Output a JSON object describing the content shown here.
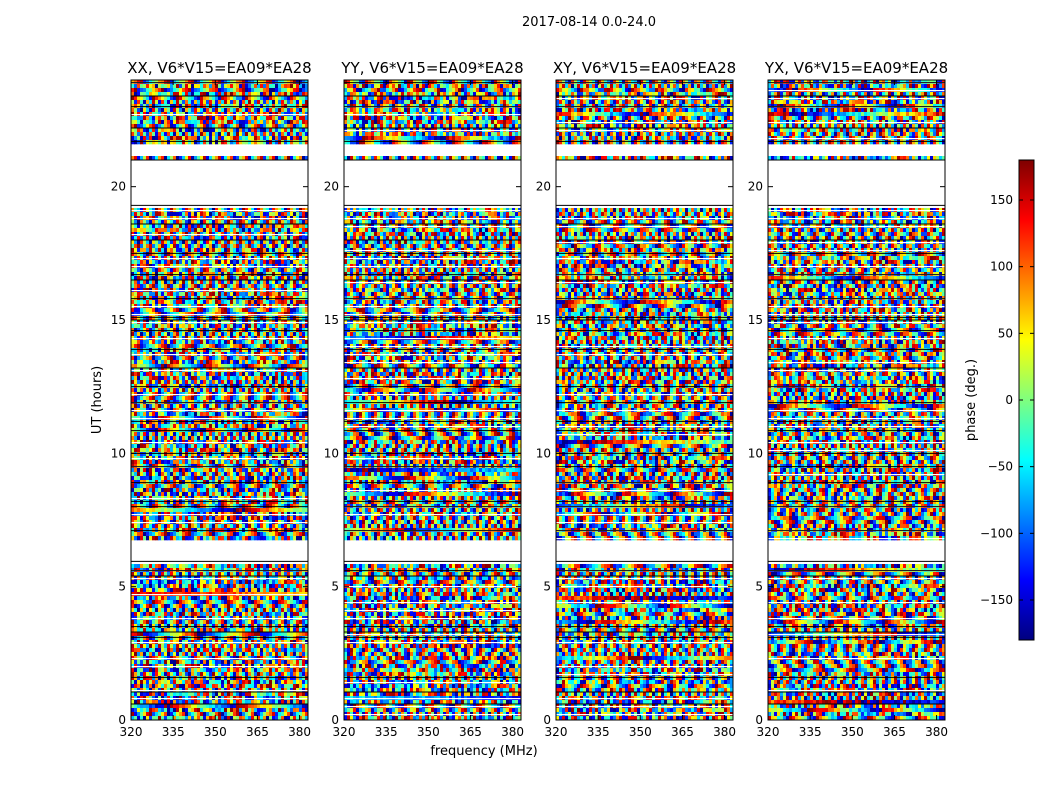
{
  "figure_title": "2017-08-14 0.0-24.0",
  "xlabel": "frequency (MHz)",
  "ylabel": "UT (hours)",
  "colorbar": {
    "label": "phase (deg.)",
    "range": [
      -180,
      180
    ],
    "ticks": [
      "150",
      "100",
      "50",
      "0",
      "−50",
      "−100",
      "−150"
    ],
    "tick_values": [
      150,
      100,
      50,
      0,
      -50,
      -100,
      -150
    ],
    "colormap": "jet",
    "colors": [
      "#00007f",
      "#0000ff",
      "#007fff",
      "#00ffff",
      "#7fff7f",
      "#ffff00",
      "#ff7f00",
      "#ff0000",
      "#7f0000"
    ]
  },
  "chart_data": {
    "type": "heatmap",
    "xlim": [
      320,
      383
    ],
    "ylim": [
      0,
      24
    ],
    "xticks": [
      320,
      335,
      350,
      365,
      380
    ],
    "xtick_labels": [
      "320",
      "335",
      "350",
      "365",
      "380"
    ],
    "yticks": [
      0,
      5,
      10,
      15,
      20
    ],
    "ytick_labels": [
      "0",
      "5",
      "10",
      "15",
      "20"
    ],
    "scan_boundaries_hours": [
      0.6,
      1.05,
      1.6,
      3.1,
      3.3,
      3.5,
      5.4,
      5.6,
      5.95,
      7.1,
      8.0,
      8.2,
      8.9,
      9.5,
      10.0,
      10.85,
      11.2,
      11.9,
      12.5,
      13.2,
      13.9,
      14.6,
      15.0,
      15.1,
      15.8,
      16.5,
      16.7,
      17.5,
      18.0,
      18.6,
      19.3,
      21.0,
      21.7,
      22.2,
      23.0,
      23.4,
      23.9
    ],
    "gaps_hours": [
      [
        19.3,
        21.0
      ],
      [
        21.25,
        21.7
      ],
      [
        6.0,
        6.75
      ]
    ],
    "panels": [
      {
        "title": "XX, V6*V15=EA09*EA28"
      },
      {
        "title": "YY, V6*V15=EA09*EA28"
      },
      {
        "title": "XY, V6*V15=EA09*EA28"
      },
      {
        "title": "YX, V6*V15=EA09*EA28"
      }
    ]
  }
}
